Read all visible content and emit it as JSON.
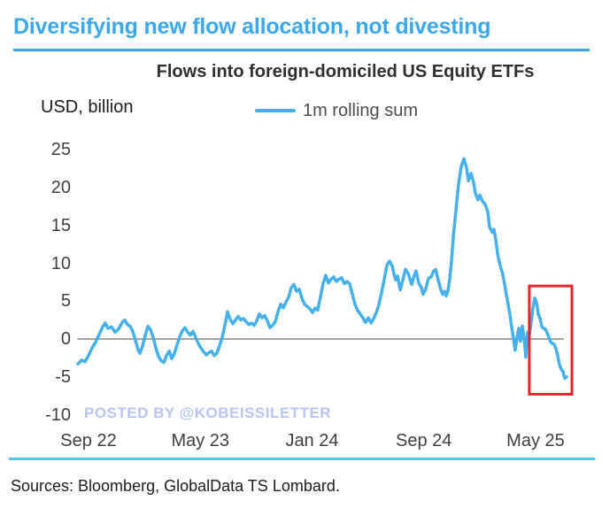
{
  "page": {
    "header_title": "Diversifying new flow allocation, not divesting",
    "watermark": "POSTED BY @KOBEISSILETTER",
    "sources": "Sources: Bloomberg, GlobalData TS Lombard."
  },
  "colors": {
    "header_blue": "#3aa8ee",
    "header_underline_blue": "#36a4ea",
    "line_blue": "#45b1ec",
    "bottom_divider_blue": "#4fc3f6",
    "watermark_lavender": "#b8c4f2",
    "highlight_red": "#e62329",
    "zero_line_gray": "#888888"
  },
  "chart_data": {
    "type": "line",
    "title": "Flows into foreign-domiciled US Equity ETFs",
    "ylabel": "USD, billion",
    "xlabel": "",
    "legend_position": "top-center",
    "legend": [
      {
        "name": "1m rolling sum",
        "color": "#45b1ec"
      }
    ],
    "grid": "zero-line-only",
    "x_unit": "months since Sep 2022",
    "xlim": [
      -0.8,
      34.2
    ],
    "ylim": [
      -10,
      25
    ],
    "x_ticks": [
      {
        "t": 0,
        "label": "Sep 22"
      },
      {
        "t": 8,
        "label": "May 23"
      },
      {
        "t": 16,
        "label": "Jan 24"
      },
      {
        "t": 24,
        "label": "Sep 24"
      },
      {
        "t": 32,
        "label": "May 25"
      }
    ],
    "y_ticks": [
      {
        "v": 25,
        "label": "25"
      },
      {
        "v": 20,
        "label": "20"
      },
      {
        "v": 15,
        "label": "15"
      },
      {
        "v": 10,
        "label": "10"
      },
      {
        "v": 5,
        "label": "5"
      },
      {
        "v": 0,
        "label": "0"
      },
      {
        "v": -5,
        "label": "-5"
      },
      {
        "v": -10,
        "label": "-10"
      }
    ],
    "annotation": {
      "type": "rect",
      "meaning": "red box highlighting recent decline near May 25",
      "color": "#e62329",
      "t_range": [
        31.55,
        34.6
      ],
      "v_range": [
        -7.3,
        7.0
      ]
    },
    "series": [
      {
        "name": "1m rolling sum",
        "color": "#45b1ec",
        "points": [
          [
            -0.76,
            -3.3
          ],
          [
            -0.51,
            -2.8
          ],
          [
            -0.25,
            -3.0
          ],
          [
            0,
            -2.2
          ],
          [
            0.25,
            -1.2
          ],
          [
            0.51,
            -0.4
          ],
          [
            0.76,
            0.6
          ],
          [
            1.01,
            1.6
          ],
          [
            1.2,
            2.1
          ],
          [
            1.39,
            1.4
          ],
          [
            1.65,
            1.6
          ],
          [
            1.9,
            0.9
          ],
          [
            2.15,
            1.3
          ],
          [
            2.41,
            2.2
          ],
          [
            2.6,
            2.5
          ],
          [
            2.79,
            1.9
          ],
          [
            2.98,
            1.7
          ],
          [
            3.17,
            1.0
          ],
          [
            3.36,
            -0.2
          ],
          [
            3.55,
            -1.4
          ],
          [
            3.68,
            -1.9
          ],
          [
            3.87,
            -0.9
          ],
          [
            4.06,
            0.5
          ],
          [
            4.25,
            1.7
          ],
          [
            4.44,
            1.2
          ],
          [
            4.63,
            0.2
          ],
          [
            4.82,
            -1.2
          ],
          [
            5.01,
            -2.3
          ],
          [
            5.2,
            -2.9
          ],
          [
            5.39,
            -3.1
          ],
          [
            5.58,
            -2.2
          ],
          [
            5.77,
            -1.6
          ],
          [
            5.96,
            -2.6
          ],
          [
            6.15,
            -1.9
          ],
          [
            6.34,
            -0.8
          ],
          [
            6.53,
            0.3
          ],
          [
            6.72,
            1.1
          ],
          [
            6.91,
            1.5
          ],
          [
            7.1,
            0.9
          ],
          [
            7.29,
            0.5
          ],
          [
            7.48,
            1.0
          ],
          [
            7.67,
            0.2
          ],
          [
            7.86,
            -0.6
          ],
          [
            8.05,
            -1.2
          ],
          [
            8.24,
            -1.7
          ],
          [
            8.43,
            -2.1
          ],
          [
            8.62,
            -1.8
          ],
          [
            8.81,
            -1.6
          ],
          [
            9.0,
            -2.2
          ],
          [
            9.19,
            -1.9
          ],
          [
            9.38,
            -0.9
          ],
          [
            9.57,
            0.2
          ],
          [
            9.76,
            1.8
          ],
          [
            9.95,
            3.6
          ],
          [
            10.14,
            2.6
          ],
          [
            10.33,
            2.0
          ],
          [
            10.52,
            2.5
          ],
          [
            10.71,
            3.0
          ],
          [
            10.9,
            2.5
          ],
          [
            11.09,
            2.7
          ],
          [
            11.28,
            2.3
          ],
          [
            11.47,
            1.9
          ],
          [
            11.66,
            2.1
          ],
          [
            11.85,
            1.8
          ],
          [
            12.04,
            2.4
          ],
          [
            12.23,
            3.3
          ],
          [
            12.42,
            2.8
          ],
          [
            12.61,
            3.1
          ],
          [
            12.8,
            2.4
          ],
          [
            12.99,
            1.5
          ],
          [
            13.18,
            1.8
          ],
          [
            13.37,
            2.3
          ],
          [
            13.56,
            3.6
          ],
          [
            13.75,
            4.6
          ],
          [
            13.94,
            4.1
          ],
          [
            14.13,
            4.9
          ],
          [
            14.32,
            5.5
          ],
          [
            14.51,
            6.8
          ],
          [
            14.7,
            7.2
          ],
          [
            14.89,
            6.3
          ],
          [
            15.08,
            6.6
          ],
          [
            15.27,
            5.4
          ],
          [
            15.46,
            4.6
          ],
          [
            15.65,
            4.3
          ],
          [
            15.84,
            4.0
          ],
          [
            16.03,
            3.5
          ],
          [
            16.22,
            4.1
          ],
          [
            16.41,
            3.8
          ],
          [
            16.6,
            5.5
          ],
          [
            16.79,
            7.3
          ],
          [
            16.98,
            8.4
          ],
          [
            17.17,
            7.4
          ],
          [
            17.36,
            7.9
          ],
          [
            17.55,
            8.2
          ],
          [
            17.74,
            7.6
          ],
          [
            17.93,
            7.9
          ],
          [
            18.12,
            8.1
          ],
          [
            18.31,
            7.3
          ],
          [
            18.5,
            7.6
          ],
          [
            18.69,
            7.3
          ],
          [
            18.88,
            6.0
          ],
          [
            19.07,
            4.6
          ],
          [
            19.26,
            3.8
          ],
          [
            19.45,
            3.3
          ],
          [
            19.64,
            2.8
          ],
          [
            19.83,
            2.2
          ],
          [
            20.03,
            2.8
          ],
          [
            20.22,
            2.1
          ],
          [
            20.41,
            2.7
          ],
          [
            20.6,
            3.5
          ],
          [
            20.79,
            4.6
          ],
          [
            20.98,
            6.2
          ],
          [
            21.17,
            7.9
          ],
          [
            21.36,
            9.8
          ],
          [
            21.55,
            10.3
          ],
          [
            21.74,
            9.6
          ],
          [
            21.86,
            8.6
          ],
          [
            21.99,
            7.8
          ],
          [
            22.12,
            8.3
          ],
          [
            22.31,
            6.5
          ],
          [
            22.5,
            7.8
          ],
          [
            22.69,
            9.2
          ],
          [
            22.88,
            8.7
          ],
          [
            23.0,
            8.0
          ],
          [
            23.13,
            7.2
          ],
          [
            23.32,
            8.4
          ],
          [
            23.45,
            9.0
          ],
          [
            23.64,
            7.4
          ],
          [
            23.83,
            6.8
          ],
          [
            23.95,
            5.9
          ],
          [
            24.14,
            6.6
          ],
          [
            24.33,
            8.0
          ],
          [
            24.52,
            8.2
          ],
          [
            24.71,
            9.0
          ],
          [
            24.84,
            9.2
          ],
          [
            25.03,
            7.8
          ],
          [
            25.22,
            6.5
          ],
          [
            25.35,
            5.9
          ],
          [
            25.48,
            6.3
          ],
          [
            25.6,
            5.7
          ],
          [
            25.73,
            6.4
          ],
          [
            25.86,
            8.0
          ],
          [
            25.98,
            10.3
          ],
          [
            26.11,
            13.5
          ],
          [
            26.3,
            17.0
          ],
          [
            26.49,
            20.5
          ],
          [
            26.68,
            22.8
          ],
          [
            26.87,
            23.8
          ],
          [
            27.06,
            22.6
          ],
          [
            27.19,
            20.9
          ],
          [
            27.38,
            21.9
          ],
          [
            27.57,
            20.6
          ],
          [
            27.69,
            19.3
          ],
          [
            27.88,
            18.4
          ],
          [
            28.01,
            19.0
          ],
          [
            28.2,
            18.2
          ],
          [
            28.39,
            17.8
          ],
          [
            28.58,
            16.8
          ],
          [
            28.71,
            14.8
          ],
          [
            28.9,
            14.1
          ],
          [
            29.02,
            14.5
          ],
          [
            29.15,
            13.1
          ],
          [
            29.28,
            11.3
          ],
          [
            29.4,
            10.2
          ],
          [
            29.53,
            9.3
          ],
          [
            29.66,
            8.5
          ],
          [
            29.78,
            7.3
          ],
          [
            29.91,
            5.8
          ],
          [
            30.04,
            4.6
          ],
          [
            30.16,
            3.3
          ],
          [
            30.29,
            1.5
          ],
          [
            30.42,
            0.1
          ],
          [
            30.54,
            -1.5
          ],
          [
            30.67,
            0.2
          ],
          [
            30.8,
            1.4
          ],
          [
            30.92,
            -0.3
          ],
          [
            31.05,
            1.7
          ],
          [
            31.18,
            0.2
          ],
          [
            31.3,
            -2.4
          ],
          [
            31.43,
            0.9
          ],
          [
            31.56,
            0.6
          ],
          [
            31.69,
            2.3
          ],
          [
            31.81,
            4.1
          ],
          [
            31.94,
            5.4
          ],
          [
            32.07,
            4.8
          ],
          [
            32.19,
            3.3
          ],
          [
            32.32,
            2.7
          ],
          [
            32.45,
            1.6
          ],
          [
            32.57,
            1.4
          ],
          [
            32.7,
            1.3
          ],
          [
            32.83,
            0.8
          ],
          [
            32.95,
            0.2
          ],
          [
            33.08,
            -0.4
          ],
          [
            33.21,
            -0.6
          ],
          [
            33.33,
            -0.7
          ],
          [
            33.46,
            -1.3
          ],
          [
            33.59,
            -2.3
          ],
          [
            33.71,
            -3.4
          ],
          [
            33.84,
            -4.0
          ],
          [
            33.97,
            -4.3
          ],
          [
            34.09,
            -5.2
          ],
          [
            34.22,
            -5.0
          ]
        ]
      }
    ]
  }
}
